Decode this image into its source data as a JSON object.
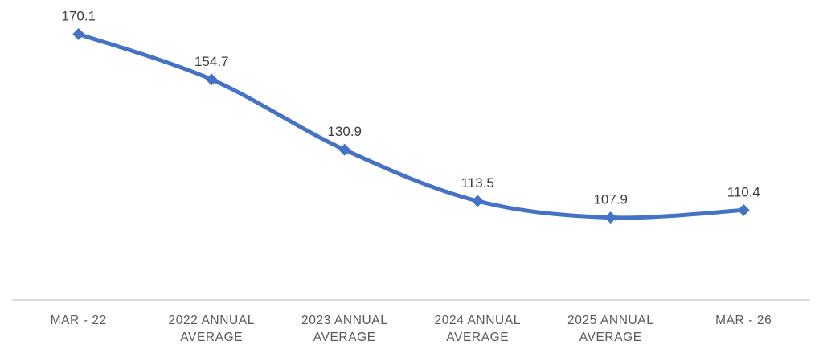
{
  "chart_data": {
    "type": "line",
    "categories": [
      "MAR - 22",
      "2022 ANNUAL AVERAGE",
      "2023 ANNUAL AVERAGE",
      "2024 ANNUAL AVERAGE",
      "2025 ANNUAL AVERAGE",
      "MAR - 26"
    ],
    "values": [
      170.1,
      154.7,
      130.9,
      113.5,
      107.9,
      110.4
    ],
    "data_labels": [
      "170.1",
      "154.7",
      "130.9",
      "113.5",
      "107.9",
      "110.4"
    ],
    "title": "",
    "xlabel": "",
    "ylabel": "",
    "ylim": [
      80,
      180
    ],
    "grid": false,
    "legend_position": "none",
    "line_smooth": true,
    "marker_shape": "diamond",
    "colors": {
      "line": "#4472C4",
      "marker": "#4472C4",
      "data_label": "#3d3d3d",
      "category_label": "#595959",
      "axis_line": "#c8c8c8",
      "background": "#ffffff"
    }
  }
}
